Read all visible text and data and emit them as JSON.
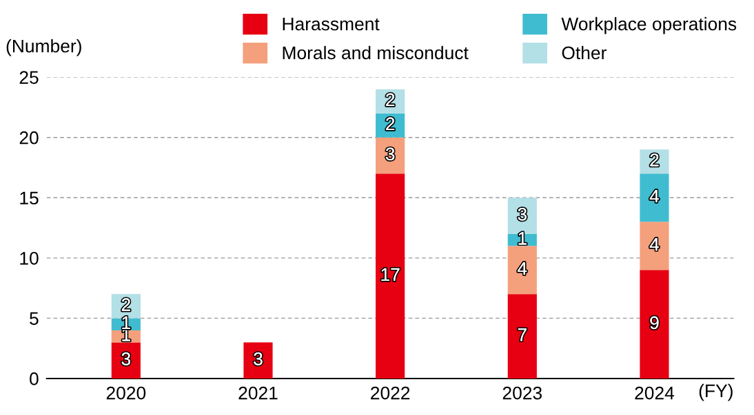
{
  "chart_data": {
    "type": "bar",
    "stacked": true,
    "ylabel": "(Number)",
    "xlabel": "(FY)",
    "categories": [
      "2020",
      "2021",
      "2022",
      "2023",
      "2024"
    ],
    "series": [
      {
        "name": "Harassment",
        "color": "#e60012",
        "values": [
          3,
          3,
          17,
          7,
          9
        ]
      },
      {
        "name": "Morals and misconduct",
        "color": "#f4a07c",
        "values": [
          1,
          null,
          3,
          4,
          4
        ]
      },
      {
        "name": "Workplace operations",
        "color": "#40bcd0",
        "values": [
          1,
          null,
          2,
          1,
          4
        ]
      },
      {
        "name": "Other",
        "color": "#b3dfe6",
        "values": [
          2,
          null,
          2,
          3,
          2
        ]
      }
    ],
    "ylim": [
      0,
      25
    ],
    "yticks": [
      0,
      5,
      10,
      15,
      20,
      25
    ],
    "grid": "y",
    "legend": "top",
    "data_labels": true
  }
}
